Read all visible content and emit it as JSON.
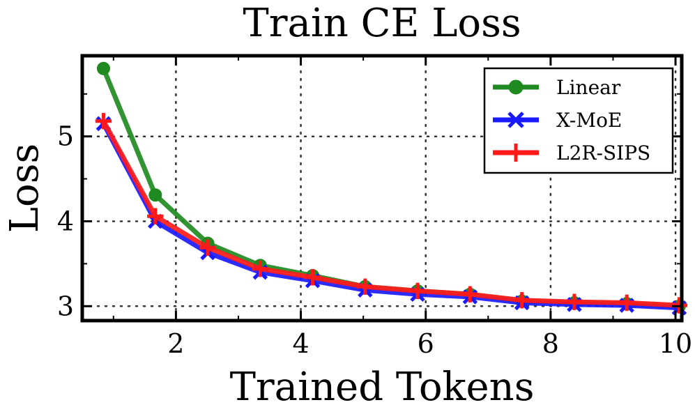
{
  "chart_data": {
    "type": "line",
    "title": "Train CE Loss",
    "xlabel": "Trained Tokens",
    "ylabel": "Loss",
    "xlim": [
      0.5,
      10.1
    ],
    "ylim": [
      2.83,
      5.95
    ],
    "x_ticks": [
      2,
      4,
      6,
      8,
      10
    ],
    "y_ticks": [
      3,
      4,
      5
    ],
    "x_minor_ticks": [
      1,
      3,
      5,
      7,
      9
    ],
    "y_minor_ticks": [
      3.5,
      4.5,
      5.5
    ],
    "grid": true,
    "legend_position": "top-right",
    "series": [
      {
        "name": "Linear",
        "color": "#1f8a1f",
        "marker": "circle",
        "x": [
          0.84,
          1.67,
          2.51,
          3.35,
          4.19,
          5.03,
          5.87,
          6.71,
          7.54,
          8.38,
          9.22,
          10.06
        ],
        "values": [
          5.8,
          4.31,
          3.74,
          3.48,
          3.36,
          3.23,
          3.18,
          3.14,
          3.06,
          3.04,
          3.03,
          3.0
        ]
      },
      {
        "name": "X-MoE",
        "color": "#1a1aff",
        "marker": "x",
        "x": [
          0.84,
          1.67,
          2.51,
          3.35,
          4.19,
          5.03,
          5.87,
          6.71,
          7.54,
          8.38,
          9.22,
          10.06
        ],
        "values": [
          5.15,
          4.0,
          3.63,
          3.4,
          3.3,
          3.19,
          3.14,
          3.11,
          3.04,
          3.02,
          3.01,
          2.98
        ]
      },
      {
        "name": "L2R-SIPS",
        "color": "#ff1a1a",
        "marker": "plus",
        "x": [
          0.84,
          1.67,
          2.51,
          3.35,
          4.19,
          5.03,
          5.87,
          6.71,
          7.54,
          8.38,
          9.22,
          10.06
        ],
        "values": [
          5.18,
          4.06,
          3.69,
          3.44,
          3.34,
          3.23,
          3.18,
          3.14,
          3.07,
          3.05,
          3.04,
          3.01
        ]
      }
    ]
  }
}
